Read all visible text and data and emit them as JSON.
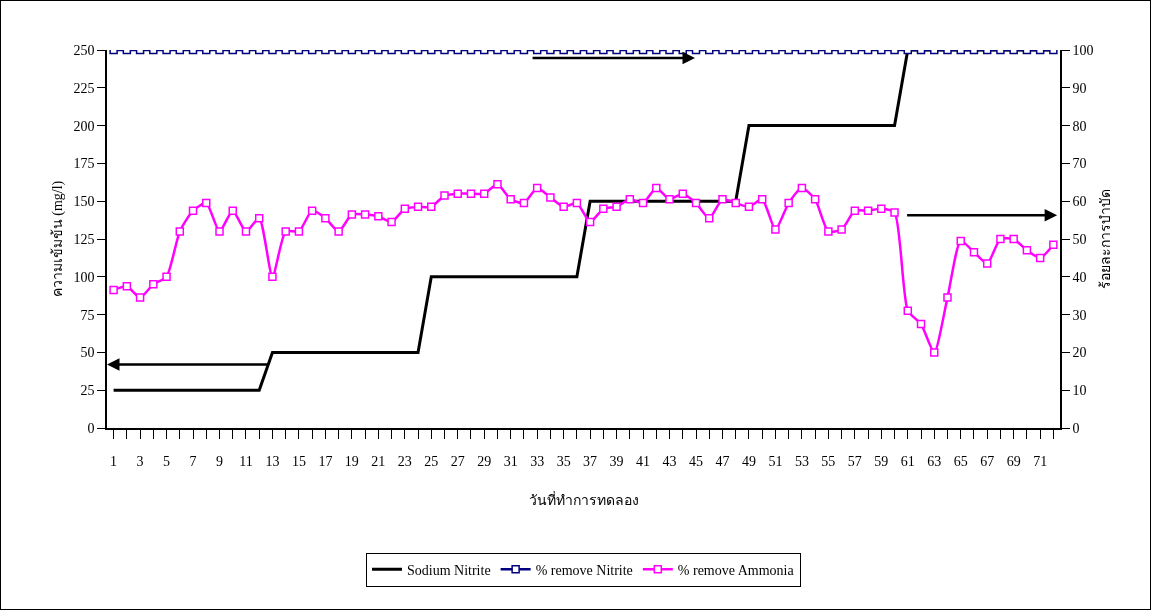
{
  "chart_data": {
    "type": "line",
    "xlabel": "วันที่ทำการทดลอง",
    "ylabel": "ความเข้มข้น (mg/l)",
    "y2label": "ร้อยละการบำบัด",
    "x": [
      1,
      2,
      3,
      4,
      5,
      6,
      7,
      8,
      9,
      10,
      11,
      12,
      13,
      14,
      15,
      16,
      17,
      18,
      19,
      20,
      21,
      22,
      23,
      24,
      25,
      26,
      27,
      28,
      29,
      30,
      31,
      32,
      33,
      34,
      35,
      36,
      37,
      38,
      39,
      40,
      41,
      42,
      43,
      44,
      45,
      46,
      47,
      48,
      49,
      50,
      51,
      52,
      53,
      54,
      55,
      56,
      57,
      58,
      59,
      60,
      61,
      62,
      63,
      64,
      65,
      66,
      67,
      68,
      69,
      70,
      71,
      72
    ],
    "xlim": [
      0.5,
      72.5
    ],
    "xticks": [
      1,
      {
        "value": 2,
        "label": null
      },
      3,
      {
        "value": 4,
        "label": null
      },
      5,
      {
        "value": 6,
        "label": null
      },
      7,
      {
        "value": 8,
        "label": null
      },
      9,
      {
        "value": 10,
        "label": null
      },
      11,
      {
        "value": 12,
        "label": null
      },
      13,
      {
        "value": 14,
        "label": null
      },
      15,
      {
        "value": 16,
        "label": null
      },
      17,
      {
        "value": 18,
        "label": null
      },
      19,
      {
        "value": 20,
        "label": null
      },
      21,
      {
        "value": 22,
        "label": null
      },
      23,
      {
        "value": 24,
        "label": null
      },
      25,
      {
        "value": 26,
        "label": null
      },
      27,
      {
        "value": 28,
        "label": null
      },
      29,
      {
        "value": 30,
        "label": null
      },
      31,
      {
        "value": 32,
        "label": null
      },
      33,
      {
        "value": 34,
        "label": null
      },
      35,
      {
        "value": 36,
        "label": null
      },
      37,
      {
        "value": 38,
        "label": null
      },
      39,
      {
        "value": 40,
        "label": null
      },
      41,
      {
        "value": 42,
        "label": null
      },
      43,
      {
        "value": 44,
        "label": null
      },
      45,
      {
        "value": 46,
        "label": null
      },
      47,
      {
        "value": 48,
        "label": null
      },
      49,
      {
        "value": 50,
        "label": null
      },
      51,
      {
        "value": 52,
        "label": null
      },
      53,
      {
        "value": 54,
        "label": null
      },
      55,
      {
        "value": 56,
        "label": null
      },
      57,
      {
        "value": 58,
        "label": null
      },
      59,
      {
        "value": 60,
        "label": null
      },
      61,
      {
        "value": 62,
        "label": null
      },
      63,
      {
        "value": 64,
        "label": null
      },
      65,
      {
        "value": 66,
        "label": null
      },
      67,
      {
        "value": 68,
        "label": null
      },
      69,
      {
        "value": 70,
        "label": null
      },
      71,
      {
        "value": 72,
        "label": null
      }
    ],
    "ylim": [
      0,
      250
    ],
    "yticks": [
      0,
      25,
      50,
      75,
      100,
      125,
      150,
      175,
      200,
      225,
      250
    ],
    "y2lim": [
      0,
      100
    ],
    "y2ticks": [
      0,
      10,
      20,
      30,
      40,
      50,
      60,
      70,
      80,
      90,
      100
    ],
    "grid": false,
    "legend": "bottom",
    "series": [
      {
        "name": "Sodium Nitrite",
        "color": "#000000",
        "marker": "none",
        "values": [
          25,
          25,
          25,
          25,
          25,
          25,
          25,
          25,
          25,
          25,
          25,
          25,
          50,
          50,
          50,
          50,
          50,
          50,
          50,
          50,
          50,
          50,
          50,
          50,
          100,
          100,
          100,
          100,
          100,
          100,
          100,
          100,
          100,
          100,
          100,
          100,
          150,
          150,
          150,
          150,
          150,
          150,
          150,
          150,
          150,
          150,
          150,
          150,
          200,
          200,
          200,
          200,
          200,
          200,
          200,
          200,
          200,
          200,
          200,
          200,
          250,
          250,
          250,
          250,
          250,
          250,
          250,
          250,
          250,
          250,
          250,
          250
        ]
      },
      {
        "name": "% remove Nitrite",
        "color": "#000080",
        "marker": "square",
        "axis": "y2",
        "values": [
          100,
          100,
          100,
          100,
          100,
          100,
          100,
          100,
          100,
          100,
          100,
          100,
          100,
          100,
          100,
          100,
          100,
          100,
          100,
          100,
          100,
          100,
          100,
          100,
          100,
          100,
          100,
          100,
          100,
          100,
          100,
          100,
          100,
          100,
          100,
          100,
          100,
          100,
          100,
          100,
          100,
          100,
          100,
          100,
          100,
          100,
          100,
          100,
          100,
          100,
          100,
          100,
          100,
          100,
          100,
          100,
          100,
          100,
          100,
          100,
          100,
          100,
          100,
          100,
          100,
          100,
          100,
          100,
          100,
          100,
          100,
          100
        ]
      },
      {
        "name": "% remove Ammonia",
        "color": "#ff00ff",
        "marker": "square",
        "axis": "y2",
        "values": [
          36.5,
          37.5,
          34.5,
          38,
          40,
          52,
          57.5,
          59.5,
          52,
          57.5,
          52,
          55.5,
          40,
          52,
          52,
          57.5,
          55.5,
          52,
          56.5,
          56.5,
          56,
          54.5,
          58,
          58.5,
          58.5,
          61.5,
          62,
          62,
          62,
          64.5,
          60.5,
          59.5,
          63.5,
          61,
          58.5,
          59.5,
          54.5,
          58,
          58.5,
          60.5,
          59.5,
          63.5,
          60.5,
          62,
          59.5,
          55.5,
          60.5,
          59.5,
          58.5,
          60.5,
          52.5,
          59.5,
          63.5,
          60.5,
          52,
          52.5,
          57.5,
          57.5,
          58,
          57,
          31,
          27.5,
          20,
          34.5,
          49.5,
          46.5,
          43.5,
          50,
          50,
          47,
          45,
          48.5
        ]
      }
    ]
  }
}
